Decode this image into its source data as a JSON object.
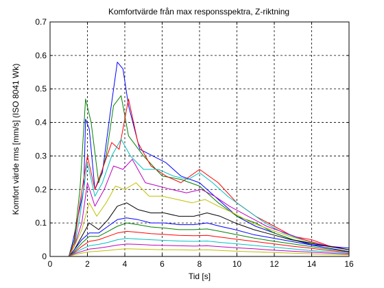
{
  "chart_data": {
    "type": "line",
    "title": "Komfortvärde från max responsspektra, Z-riktning",
    "xlabel": "Tid [s]",
    "ylabel": "Komfort värde rms [mm/s] (ISO 8041 Wk)",
    "xlim": [
      0,
      16
    ],
    "ylim": [
      0,
      0.7
    ],
    "xticks": [
      "0",
      "2",
      "4",
      "6",
      "8",
      "10",
      "12",
      "14",
      "16"
    ],
    "yticks": [
      "0",
      "0.1",
      "0.2",
      "0.3",
      "0.4",
      "0.5",
      "0.6",
      "0.7"
    ],
    "grid": true,
    "grid_style": "dashed",
    "series_colors": [
      "#0000ff",
      "#008000",
      "#ff0000",
      "#00bfbf",
      "#bf00bf",
      "#bfbf00",
      "#000000"
    ],
    "series": [
      {
        "values": [
          [
            0,
            0
          ],
          [
            1,
            0
          ],
          [
            1.2,
            0.04
          ],
          [
            1.5,
            0.12
          ],
          [
            1.8,
            0.2
          ],
          [
            1.9,
            0.41
          ],
          [
            2.1,
            0.38
          ],
          [
            2.4,
            0.2
          ],
          [
            2.8,
            0.25
          ],
          [
            3.2,
            0.42
          ],
          [
            3.6,
            0.58
          ],
          [
            3.9,
            0.56
          ],
          [
            4.2,
            0.45
          ],
          [
            4.8,
            0.32
          ],
          [
            5.5,
            0.3
          ],
          [
            6.2,
            0.28
          ],
          [
            7,
            0.24
          ],
          [
            8,
            0.22
          ],
          [
            9,
            0.17
          ],
          [
            10,
            0.12
          ],
          [
            11,
            0.09
          ],
          [
            12,
            0.07
          ],
          [
            13,
            0.05
          ],
          [
            14,
            0.035
          ],
          [
            16,
            0.025
          ]
        ]
      },
      {
        "values": [
          [
            0,
            0
          ],
          [
            1,
            0
          ],
          [
            1.3,
            0.05
          ],
          [
            1.6,
            0.2
          ],
          [
            1.9,
            0.47
          ],
          [
            2.2,
            0.4
          ],
          [
            2.6,
            0.22
          ],
          [
            3,
            0.3
          ],
          [
            3.4,
            0.45
          ],
          [
            3.8,
            0.48
          ],
          [
            4.2,
            0.36
          ],
          [
            5,
            0.3
          ],
          [
            6,
            0.24
          ],
          [
            7,
            0.23
          ],
          [
            8,
            0.21
          ],
          [
            9,
            0.16
          ],
          [
            10,
            0.12
          ],
          [
            11,
            0.1
          ],
          [
            12,
            0.07
          ],
          [
            13,
            0.05
          ],
          [
            14,
            0.04
          ],
          [
            16,
            0.02
          ]
        ]
      },
      {
        "values": [
          [
            0,
            0
          ],
          [
            1,
            0
          ],
          [
            1.3,
            0.04
          ],
          [
            1.6,
            0.16
          ],
          [
            2,
            0.3
          ],
          [
            2.4,
            0.2
          ],
          [
            2.8,
            0.26
          ],
          [
            3.3,
            0.34
          ],
          [
            3.7,
            0.32
          ],
          [
            4.2,
            0.47
          ],
          [
            4.7,
            0.34
          ],
          [
            5.4,
            0.27
          ],
          [
            6.2,
            0.24
          ],
          [
            7,
            0.22
          ],
          [
            8,
            0.26
          ],
          [
            9,
            0.22
          ],
          [
            10,
            0.16
          ],
          [
            11,
            0.12
          ],
          [
            12,
            0.09
          ],
          [
            13,
            0.06
          ],
          [
            14,
            0.05
          ],
          [
            15,
            0.03
          ],
          [
            16,
            0.02
          ]
        ]
      },
      {
        "values": [
          [
            0,
            0
          ],
          [
            1,
            0
          ],
          [
            1.3,
            0.03
          ],
          [
            1.6,
            0.12
          ],
          [
            2,
            0.28
          ],
          [
            2.4,
            0.18
          ],
          [
            2.8,
            0.22
          ],
          [
            3.3,
            0.3
          ],
          [
            3.8,
            0.35
          ],
          [
            4.3,
            0.3
          ],
          [
            5,
            0.26
          ],
          [
            5.8,
            0.26
          ],
          [
            6.6,
            0.24
          ],
          [
            7.4,
            0.23
          ],
          [
            8,
            0.25
          ],
          [
            8.7,
            0.22
          ],
          [
            9.5,
            0.18
          ],
          [
            10.5,
            0.14
          ],
          [
            11.5,
            0.1
          ],
          [
            12.5,
            0.07
          ],
          [
            13.5,
            0.05
          ],
          [
            14.5,
            0.035
          ],
          [
            16,
            0.02
          ]
        ]
      },
      {
        "values": [
          [
            0,
            0
          ],
          [
            1,
            0
          ],
          [
            1.3,
            0.03
          ],
          [
            1.7,
            0.1
          ],
          [
            2,
            0.22
          ],
          [
            2.4,
            0.15
          ],
          [
            2.9,
            0.2
          ],
          [
            3.4,
            0.27
          ],
          [
            3.9,
            0.26
          ],
          [
            4.4,
            0.29
          ],
          [
            5.1,
            0.22
          ],
          [
            5.8,
            0.21
          ],
          [
            6.5,
            0.2
          ],
          [
            7.3,
            0.19
          ],
          [
            8.1,
            0.2
          ],
          [
            8.8,
            0.18
          ],
          [
            9.6,
            0.15
          ],
          [
            10.6,
            0.12
          ],
          [
            11.6,
            0.09
          ],
          [
            12.6,
            0.07
          ],
          [
            13.6,
            0.05
          ],
          [
            14.6,
            0.035
          ],
          [
            16,
            0.02
          ]
        ]
      },
      {
        "values": [
          [
            0,
            0
          ],
          [
            1,
            0
          ],
          [
            1.3,
            0.03
          ],
          [
            1.7,
            0.08
          ],
          [
            2.1,
            0.16
          ],
          [
            2.5,
            0.12
          ],
          [
            3,
            0.16
          ],
          [
            3.5,
            0.21
          ],
          [
            4,
            0.2
          ],
          [
            4.6,
            0.22
          ],
          [
            5.3,
            0.18
          ],
          [
            6,
            0.18
          ],
          [
            6.8,
            0.17
          ],
          [
            7.6,
            0.16
          ],
          [
            8.3,
            0.17
          ],
          [
            9,
            0.15
          ],
          [
            9.8,
            0.13
          ],
          [
            10.8,
            0.1
          ],
          [
            11.8,
            0.08
          ],
          [
            12.8,
            0.06
          ],
          [
            13.8,
            0.045
          ],
          [
            14.8,
            0.03
          ],
          [
            16,
            0.02
          ]
        ]
      },
      {
        "values": [
          [
            0,
            0
          ],
          [
            1,
            0
          ],
          [
            1.3,
            0.02
          ],
          [
            1.7,
            0.06
          ],
          [
            2.1,
            0.1
          ],
          [
            2.6,
            0.08
          ],
          [
            3.1,
            0.11
          ],
          [
            3.6,
            0.15
          ],
          [
            4.1,
            0.16
          ],
          [
            4.7,
            0.14
          ],
          [
            5.4,
            0.13
          ],
          [
            6.1,
            0.13
          ],
          [
            6.9,
            0.12
          ],
          [
            7.7,
            0.12
          ],
          [
            8.4,
            0.13
          ],
          [
            9.1,
            0.12
          ],
          [
            9.9,
            0.1
          ],
          [
            10.9,
            0.08
          ],
          [
            11.9,
            0.065
          ],
          [
            12.9,
            0.05
          ],
          [
            13.9,
            0.04
          ],
          [
            14.9,
            0.03
          ],
          [
            16,
            0.02
          ]
        ]
      },
      {
        "values": [
          [
            0,
            0
          ],
          [
            1,
            0
          ],
          [
            1.3,
            0.02
          ],
          [
            1.7,
            0.05
          ],
          [
            2.1,
            0.07
          ],
          [
            2.6,
            0.07
          ],
          [
            3.1,
            0.09
          ],
          [
            3.6,
            0.11
          ],
          [
            4.1,
            0.115
          ],
          [
            4.7,
            0.11
          ],
          [
            5.4,
            0.1
          ],
          [
            6.1,
            0.1
          ],
          [
            6.9,
            0.095
          ],
          [
            7.7,
            0.095
          ],
          [
            8.4,
            0.1
          ],
          [
            9.1,
            0.09
          ],
          [
            9.9,
            0.08
          ],
          [
            10.9,
            0.065
          ],
          [
            11.9,
            0.055
          ],
          [
            12.9,
            0.045
          ],
          [
            13.9,
            0.035
          ],
          [
            14.9,
            0.025
          ],
          [
            16,
            0.015
          ]
        ]
      },
      {
        "values": [
          [
            0,
            0
          ],
          [
            1,
            0
          ],
          [
            1.3,
            0.015
          ],
          [
            1.7,
            0.04
          ],
          [
            2.1,
            0.06
          ],
          [
            2.6,
            0.06
          ],
          [
            3.1,
            0.075
          ],
          [
            3.6,
            0.09
          ],
          [
            4.1,
            0.1
          ],
          [
            4.7,
            0.095
          ],
          [
            5.4,
            0.088
          ],
          [
            6.1,
            0.085
          ],
          [
            6.9,
            0.08
          ],
          [
            7.7,
            0.08
          ],
          [
            8.4,
            0.082
          ],
          [
            9.1,
            0.075
          ],
          [
            9.9,
            0.066
          ],
          [
            10.9,
            0.055
          ],
          [
            11.9,
            0.046
          ],
          [
            12.9,
            0.038
          ],
          [
            13.9,
            0.03
          ],
          [
            14.9,
            0.022
          ],
          [
            16,
            0.014
          ]
        ]
      },
      {
        "values": [
          [
            0,
            0
          ],
          [
            1,
            0
          ],
          [
            1.3,
            0.012
          ],
          [
            1.7,
            0.03
          ],
          [
            2.1,
            0.045
          ],
          [
            2.6,
            0.05
          ],
          [
            3.1,
            0.06
          ],
          [
            3.6,
            0.07
          ],
          [
            4.1,
            0.075
          ],
          [
            4.7,
            0.072
          ],
          [
            5.4,
            0.068
          ],
          [
            6.1,
            0.066
          ],
          [
            6.9,
            0.063
          ],
          [
            7.7,
            0.062
          ],
          [
            8.4,
            0.063
          ],
          [
            9.1,
            0.058
          ],
          [
            9.9,
            0.052
          ],
          [
            10.9,
            0.045
          ],
          [
            11.9,
            0.038
          ],
          [
            12.9,
            0.031
          ],
          [
            13.9,
            0.025
          ],
          [
            14.9,
            0.018
          ],
          [
            16,
            0.012
          ]
        ]
      },
      {
        "values": [
          [
            0,
            0
          ],
          [
            1,
            0
          ],
          [
            1.3,
            0.01
          ],
          [
            1.7,
            0.022
          ],
          [
            2.1,
            0.032
          ],
          [
            2.6,
            0.036
          ],
          [
            3.1,
            0.042
          ],
          [
            3.6,
            0.05
          ],
          [
            4.1,
            0.054
          ],
          [
            4.7,
            0.052
          ],
          [
            5.4,
            0.05
          ],
          [
            6.1,
            0.048
          ],
          [
            6.9,
            0.046
          ],
          [
            7.7,
            0.045
          ],
          [
            8.4,
            0.046
          ],
          [
            9.1,
            0.042
          ],
          [
            9.9,
            0.038
          ],
          [
            10.9,
            0.033
          ],
          [
            11.9,
            0.028
          ],
          [
            12.9,
            0.023
          ],
          [
            13.9,
            0.018
          ],
          [
            14.9,
            0.014
          ],
          [
            16,
            0.009
          ]
        ]
      },
      {
        "values": [
          [
            0,
            0
          ],
          [
            1,
            0
          ],
          [
            1.3,
            0.008
          ],
          [
            1.7,
            0.015
          ],
          [
            2.1,
            0.022
          ],
          [
            2.6,
            0.025
          ],
          [
            3.1,
            0.029
          ],
          [
            3.6,
            0.034
          ],
          [
            4.1,
            0.037
          ],
          [
            4.7,
            0.036
          ],
          [
            5.4,
            0.034
          ],
          [
            6.1,
            0.033
          ],
          [
            6.9,
            0.032
          ],
          [
            7.7,
            0.031
          ],
          [
            8.4,
            0.032
          ],
          [
            9.1,
            0.029
          ],
          [
            9.9,
            0.026
          ],
          [
            10.9,
            0.023
          ],
          [
            11.9,
            0.019
          ],
          [
            12.9,
            0.016
          ],
          [
            13.9,
            0.013
          ],
          [
            14.9,
            0.01
          ],
          [
            16,
            0.007
          ]
        ]
      },
      {
        "values": [
          [
            0,
            0
          ],
          [
            1,
            0
          ],
          [
            1.3,
            0.005
          ],
          [
            1.7,
            0.01
          ],
          [
            2.1,
            0.014
          ],
          [
            2.6,
            0.016
          ],
          [
            3.1,
            0.018
          ],
          [
            3.6,
            0.021
          ],
          [
            4.1,
            0.023
          ],
          [
            4.7,
            0.022
          ],
          [
            5.4,
            0.021
          ],
          [
            6.1,
            0.02
          ],
          [
            6.9,
            0.02
          ],
          [
            7.7,
            0.019
          ],
          [
            8.4,
            0.02
          ],
          [
            9.1,
            0.018
          ],
          [
            9.9,
            0.016
          ],
          [
            10.9,
            0.014
          ],
          [
            11.9,
            0.012
          ],
          [
            12.9,
            0.01
          ],
          [
            13.9,
            0.008
          ],
          [
            14.9,
            0.006
          ],
          [
            16,
            0.004
          ]
        ]
      }
    ]
  }
}
